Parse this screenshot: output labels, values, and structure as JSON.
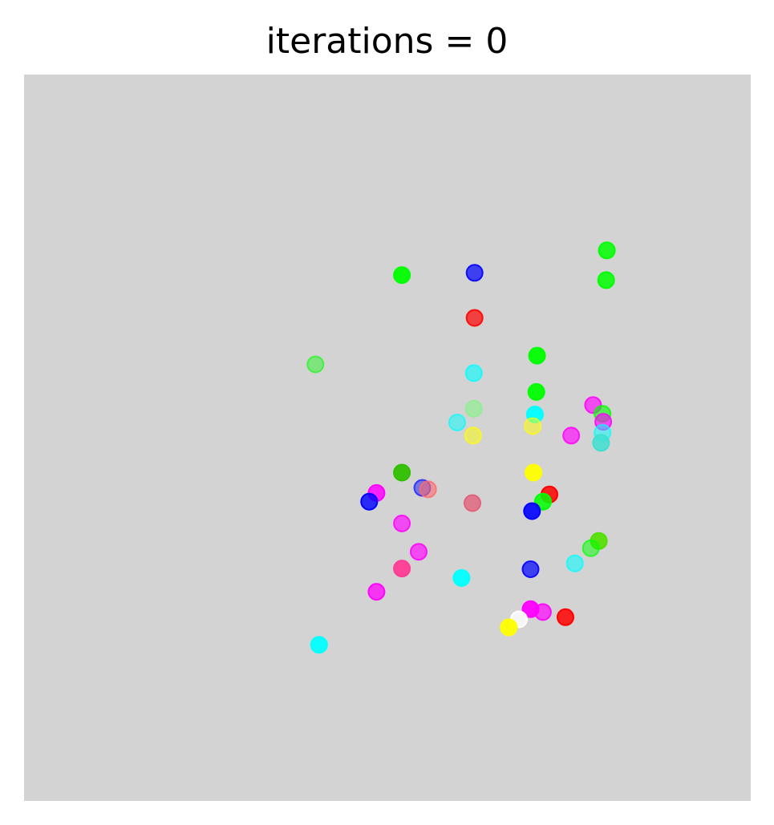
{
  "chart_data": {
    "type": "scatter",
    "title": "iterations = 0",
    "xlabel": "",
    "ylabel": "",
    "axes_visible": false,
    "grid": false,
    "legend": "none",
    "background_color": "#d3d3d3",
    "xlim": [
      0,
      100
    ],
    "ylim": [
      0,
      100
    ],
    "points": [
      {
        "x": 52.0,
        "y": 72.4,
        "color": "#00ff00",
        "alpha": 0.95
      },
      {
        "x": 62.0,
        "y": 72.7,
        "color": "#0000ff",
        "alpha": 0.7
      },
      {
        "x": 80.2,
        "y": 75.8,
        "color": "#00ff00",
        "alpha": 0.85
      },
      {
        "x": 80.1,
        "y": 71.7,
        "color": "#00ff00",
        "alpha": 0.85
      },
      {
        "x": 62.0,
        "y": 66.5,
        "color": "#ff0000",
        "alpha": 0.7
      },
      {
        "x": 40.1,
        "y": 60.1,
        "color": "#00ff00",
        "alpha": 0.4
      },
      {
        "x": 70.6,
        "y": 61.3,
        "color": "#00ff00",
        "alpha": 0.95
      },
      {
        "x": 61.9,
        "y": 58.9,
        "color": "#00ffff",
        "alpha": 0.6
      },
      {
        "x": 70.5,
        "y": 56.3,
        "color": "#00ff00",
        "alpha": 0.95
      },
      {
        "x": 61.9,
        "y": 54.0,
        "color": "#90ee90",
        "alpha": 0.7
      },
      {
        "x": 59.6,
        "y": 52.1,
        "color": "#00ffff",
        "alpha": 0.5
      },
      {
        "x": 70.3,
        "y": 53.2,
        "color": "#00ffff",
        "alpha": 0.95
      },
      {
        "x": 70.0,
        "y": 51.6,
        "color": "#ffff00",
        "alpha": 0.5
      },
      {
        "x": 61.8,
        "y": 50.3,
        "color": "#ffff00",
        "alpha": 0.5
      },
      {
        "x": 78.3,
        "y": 54.5,
        "color": "#ff00ff",
        "alpha": 0.65
      },
      {
        "x": 79.6,
        "y": 53.3,
        "color": "#00ff00",
        "alpha": 0.6
      },
      {
        "x": 79.7,
        "y": 52.2,
        "color": "#ff00ff",
        "alpha": 0.65
      },
      {
        "x": 79.6,
        "y": 50.7,
        "color": "#00ffff",
        "alpha": 0.5
      },
      {
        "x": 79.4,
        "y": 49.3,
        "color": "#40e0d0",
        "alpha": 0.85
      },
      {
        "x": 75.3,
        "y": 50.3,
        "color": "#ff00ff",
        "alpha": 0.65
      },
      {
        "x": 52.0,
        "y": 45.2,
        "color": "#2fbf00",
        "alpha": 0.95
      },
      {
        "x": 70.1,
        "y": 45.2,
        "color": "#ffff00",
        "alpha": 0.95
      },
      {
        "x": 48.5,
        "y": 42.4,
        "color": "#ff00ff",
        "alpha": 0.85
      },
      {
        "x": 47.5,
        "y": 41.2,
        "color": "#0000ff",
        "alpha": 0.8
      },
      {
        "x": 54.8,
        "y": 43.1,
        "color": "#0000ff",
        "alpha": 0.45
      },
      {
        "x": 55.6,
        "y": 42.9,
        "color": "#ff6a6a",
        "alpha": 0.6
      },
      {
        "x": 61.7,
        "y": 41.0,
        "color": "#e2627a",
        "alpha": 0.8
      },
      {
        "x": 72.3,
        "y": 42.2,
        "color": "#ff0000",
        "alpha": 0.85
      },
      {
        "x": 71.4,
        "y": 41.2,
        "color": "#00ff00",
        "alpha": 0.85
      },
      {
        "x": 69.9,
        "y": 39.9,
        "color": "#0000ff",
        "alpha": 0.9
      },
      {
        "x": 52.0,
        "y": 38.2,
        "color": "#ff00ff",
        "alpha": 0.65
      },
      {
        "x": 79.1,
        "y": 35.8,
        "color": "#4fe000",
        "alpha": 0.9
      },
      {
        "x": 78.0,
        "y": 34.8,
        "color": "#00ff00",
        "alpha": 0.5
      },
      {
        "x": 54.3,
        "y": 34.3,
        "color": "#ff00ff",
        "alpha": 0.65
      },
      {
        "x": 75.8,
        "y": 32.7,
        "color": "#00ffff",
        "alpha": 0.55
      },
      {
        "x": 52.0,
        "y": 32.0,
        "color": "#ff3c96",
        "alpha": 0.95
      },
      {
        "x": 60.2,
        "y": 30.7,
        "color": "#00ffff",
        "alpha": 0.95
      },
      {
        "x": 69.7,
        "y": 31.9,
        "color": "#0000ff",
        "alpha": 0.7
      },
      {
        "x": 48.5,
        "y": 28.8,
        "color": "#ff00ff",
        "alpha": 0.75
      },
      {
        "x": 69.7,
        "y": 26.4,
        "color": "#ff00ff",
        "alpha": 0.95
      },
      {
        "x": 71.4,
        "y": 26.0,
        "color": "#ff00ff",
        "alpha": 0.7
      },
      {
        "x": 68.1,
        "y": 25.0,
        "color": "#ffffff",
        "alpha": 0.8
      },
      {
        "x": 74.5,
        "y": 25.3,
        "color": "#ff0000",
        "alpha": 0.85
      },
      {
        "x": 66.7,
        "y": 23.9,
        "color": "#ffff00",
        "alpha": 0.95
      },
      {
        "x": 40.6,
        "y": 21.5,
        "color": "#00ffff",
        "alpha": 0.95
      }
    ]
  }
}
